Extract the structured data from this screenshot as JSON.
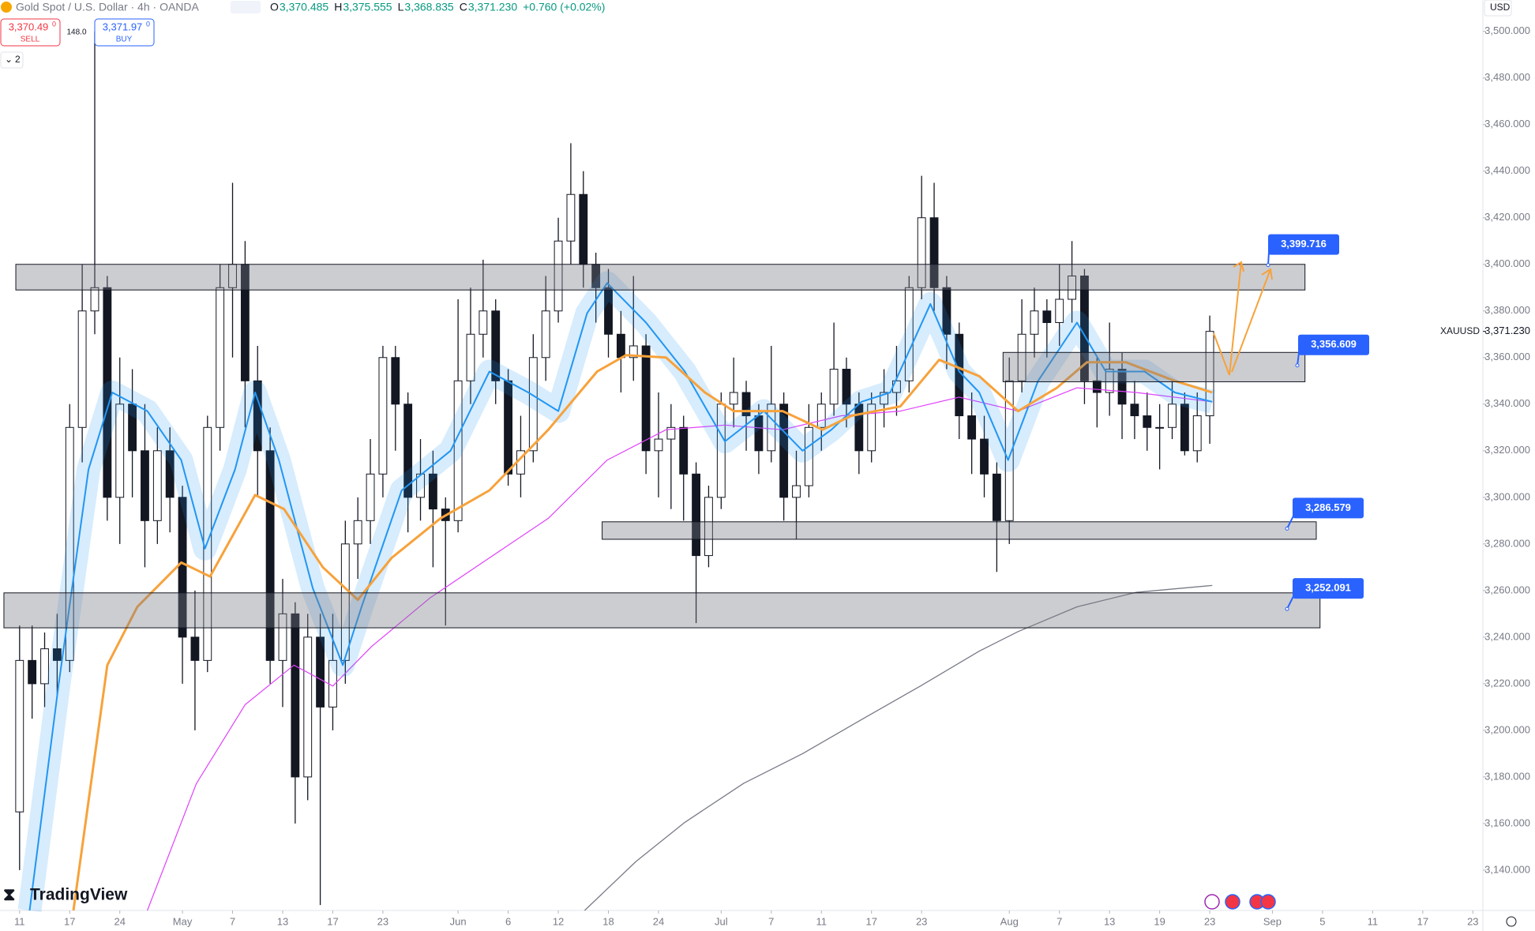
{
  "header": {
    "symbol": "Gold Spot / U.S. Dollar · 4h · OANDA",
    "ohlc": [
      {
        "key": "O",
        "value": "3,370.485"
      },
      {
        "key": "H",
        "value": "3,375.555"
      },
      {
        "key": "L",
        "value": "3,368.835"
      },
      {
        "key": "C",
        "value": "3,371.230"
      }
    ],
    "change": "+0.760 (+0.02%)",
    "sell": {
      "price": "3,370.49",
      "sup": "0",
      "label": "SELL"
    },
    "spread": "148.0",
    "buy": {
      "price": "3,371.97",
      "sup": "0",
      "label": "BUY"
    },
    "indicators": "2",
    "currency": "USD",
    "logo": "TradingView"
  },
  "chart_data": {
    "type": "candlestick",
    "xlim": [
      -1.5625,
      116.8
    ],
    "ylim": [
      3122.69,
      3513.45
    ],
    "xticks": [
      {
        "value": 0,
        "label": "11"
      },
      {
        "value": 4,
        "label": "17"
      },
      {
        "value": 8,
        "label": "24"
      },
      {
        "value": 13,
        "label": "May"
      },
      {
        "value": 17,
        "label": "7"
      },
      {
        "value": 21,
        "label": "13"
      },
      {
        "value": 25,
        "label": "17"
      },
      {
        "value": 29,
        "label": "23"
      },
      {
        "value": 35,
        "label": "Jun"
      },
      {
        "value": 39,
        "label": "6"
      },
      {
        "value": 43,
        "label": "12"
      },
      {
        "value": 47,
        "label": "18"
      },
      {
        "value": 51,
        "label": "24"
      },
      {
        "value": 56,
        "label": "Jul"
      },
      {
        "value": 60,
        "label": "7"
      },
      {
        "value": 64,
        "label": "11"
      },
      {
        "value": 68,
        "label": "17"
      },
      {
        "value": 72,
        "label": "23"
      },
      {
        "value": 79,
        "label": "Aug"
      },
      {
        "value": 83,
        "label": "7"
      },
      {
        "value": 87,
        "label": "13"
      },
      {
        "value": 91,
        "label": "19"
      },
      {
        "value": 95,
        "label": "23"
      },
      {
        "value": 100,
        "label": "Sep"
      },
      {
        "value": 104,
        "label": "5"
      },
      {
        "value": 108,
        "label": "11"
      },
      {
        "value": 112,
        "label": "17"
      },
      {
        "value": 116,
        "label": "23"
      }
    ],
    "yticks": [
      {
        "value": 3140,
        "label": "3,140.000"
      },
      {
        "value": 3160,
        "label": "3,160.000"
      },
      {
        "value": 3180,
        "label": "3,180.000"
      },
      {
        "value": 3200,
        "label": "3,200.000"
      },
      {
        "value": 3220,
        "label": "3,220.000"
      },
      {
        "value": 3240,
        "label": "3,240.000"
      },
      {
        "value": 3260,
        "label": "3,260.000"
      },
      {
        "value": 3280,
        "label": "3,280.000"
      },
      {
        "value": 3300,
        "label": "3,300.000"
      },
      {
        "value": 3320,
        "label": "3,320.000"
      },
      {
        "value": 3340,
        "label": "3,340.000"
      },
      {
        "value": 3360,
        "label": "3,360.000"
      },
      {
        "value": 3380,
        "label": "3,380.000"
      },
      {
        "value": 3400,
        "label": "3,400.000"
      },
      {
        "value": 3420,
        "label": "3,420.000"
      },
      {
        "value": 3440,
        "label": "3,440.000"
      },
      {
        "value": 3460,
        "label": "3,460.000"
      },
      {
        "value": 3480,
        "label": "3,480.000"
      },
      {
        "value": 3500,
        "label": "3,500.000"
      }
    ],
    "candles": {
      "x": [
        0,
        1,
        2,
        3,
        4,
        5,
        6,
        7,
        8,
        9,
        10,
        11,
        12,
        13,
        14,
        15,
        16,
        17,
        18,
        19,
        20,
        21,
        22,
        23,
        24,
        25,
        26,
        27,
        28,
        29,
        30,
        31,
        32,
        33,
        34,
        35,
        36,
        37,
        38,
        39,
        40,
        41,
        42,
        43,
        44,
        45,
        46,
        47,
        48,
        49,
        50,
        51,
        52,
        53,
        54,
        55,
        56,
        57,
        58,
        59,
        60,
        61,
        62,
        63,
        64,
        65,
        66,
        67,
        68,
        69,
        70,
        71,
        72,
        73,
        74,
        75,
        76,
        77,
        78,
        79,
        80,
        81,
        82,
        83,
        84,
        85,
        86,
        87,
        88,
        89,
        90,
        91,
        92,
        93,
        94,
        95
      ],
      "open": [
        3165,
        3230,
        3220,
        3235,
        3230,
        3330,
        3380,
        3390,
        3300,
        3340,
        3320,
        3290,
        3320,
        3300,
        3240,
        3230,
        3330,
        3390,
        3400,
        3350,
        3320,
        3230,
        3250,
        3180,
        3240,
        3210,
        3230,
        3280,
        3290,
        3310,
        3360,
        3340,
        3300,
        3310,
        3295,
        3290,
        3350,
        3370,
        3380,
        3350,
        3310,
        3320,
        3360,
        3380,
        3410,
        3430,
        3400,
        3390,
        3370,
        3360,
        3365,
        3320,
        3325,
        3330,
        3310,
        3275,
        3300,
        3340,
        3345,
        3335,
        3320,
        3340,
        3300,
        3305,
        3330,
        3340,
        3355,
        3340,
        3320,
        3340,
        3345,
        3350,
        3390,
        3420,
        3390,
        3370,
        3335,
        3325,
        3310,
        3290,
        3350,
        3370,
        3380,
        3375,
        3385,
        3395,
        3350,
        3345,
        3355,
        3340,
        3335,
        3330,
        3330,
        3340,
        3320,
        3335
      ],
      "high": [
        3245,
        3245,
        3242,
        3250,
        3340,
        3400,
        3500,
        3395,
        3360,
        3355,
        3340,
        3330,
        3330,
        3305,
        3260,
        3335,
        3400,
        3435,
        3410,
        3365,
        3330,
        3265,
        3255,
        3250,
        3250,
        3250,
        3290,
        3300,
        3325,
        3365,
        3365,
        3345,
        3325,
        3320,
        3300,
        3385,
        3390,
        3402,
        3385,
        3355,
        3335,
        3370,
        3395,
        3420,
        3452,
        3440,
        3405,
        3398,
        3380,
        3395,
        3370,
        3345,
        3340,
        3335,
        3315,
        3305,
        3345,
        3360,
        3350,
        3340,
        3365,
        3345,
        3320,
        3340,
        3345,
        3375,
        3360,
        3345,
        3345,
        3355,
        3365,
        3395,
        3438,
        3435,
        3395,
        3375,
        3345,
        3335,
        3315,
        3360,
        3385,
        3390,
        3385,
        3400,
        3410,
        3398,
        3360,
        3375,
        3362,
        3350,
        3345,
        3340,
        3350,
        3345,
        3345,
        3378
      ],
      "low": [
        3140,
        3205,
        3210,
        3215,
        3225,
        3315,
        3370,
        3290,
        3280,
        3300,
        3270,
        3280,
        3285,
        3220,
        3200,
        3225,
        3320,
        3360,
        3330,
        3300,
        3220,
        3210,
        3160,
        3170,
        3125,
        3200,
        3220,
        3265,
        3280,
        3300,
        3320,
        3285,
        3290,
        3270,
        3245,
        3285,
        3340,
        3360,
        3340,
        3305,
        3300,
        3315,
        3350,
        3375,
        3400,
        3390,
        3375,
        3360,
        3345,
        3350,
        3310,
        3300,
        3295,
        3290,
        3246,
        3270,
        3295,
        3330,
        3320,
        3310,
        3315,
        3290,
        3282,
        3300,
        3320,
        3335,
        3330,
        3310,
        3315,
        3330,
        3335,
        3345,
        3385,
        3380,
        3355,
        3325,
        3310,
        3300,
        3268,
        3280,
        3345,
        3360,
        3360,
        3365,
        3375,
        3340,
        3330,
        3335,
        3325,
        3325,
        3320,
        3312,
        3325,
        3318,
        3315,
        3323
      ],
      "close": [
        3230,
        3220,
        3235,
        3230,
        3330,
        3380,
        3390,
        3300,
        3340,
        3320,
        3290,
        3320,
        3300,
        3240,
        3230,
        3330,
        3390,
        3400,
        3350,
        3320,
        3230,
        3250,
        3180,
        3240,
        3210,
        3230,
        3280,
        3290,
        3310,
        3360,
        3340,
        3300,
        3310,
        3295,
        3290,
        3350,
        3370,
        3380,
        3350,
        3310,
        3320,
        3360,
        3380,
        3410,
        3430,
        3400,
        3390,
        3370,
        3360,
        3365,
        3320,
        3325,
        3330,
        3310,
        3275,
        3300,
        3340,
        3345,
        3335,
        3320,
        3340,
        3300,
        3305,
        3330,
        3340,
        3355,
        3340,
        3320,
        3340,
        3345,
        3350,
        3390,
        3420,
        3390,
        3370,
        3335,
        3325,
        3310,
        3290,
        3350,
        3370,
        3380,
        3375,
        3385,
        3395,
        3350,
        3345,
        3355,
        3340,
        3335,
        3330,
        3330,
        3340,
        3320,
        3335,
        3371.23
      ],
      "up_color": "#ffffff",
      "down_color": "#131722"
    },
    "series": [
      {
        "color": "#787b86",
        "width": 1.3,
        "x": [
          45.1,
          49.2,
          53.1,
          57.8,
          62.5,
          67.2,
          71.9,
          76.6,
          79.7,
          84.4,
          89.1,
          95.2
        ],
        "values": [
          3122.7,
          3143.7,
          3160.5,
          3177.3,
          3190,
          3204.6,
          3219,
          3234,
          3242.4,
          3253,
          3259.2,
          3262.2
        ]
      },
      {
        "color": "#e040fb",
        "width": 1.2,
        "x": [
          10.2,
          14.1,
          18,
          21.9,
          25,
          28.1,
          32.8,
          37.5,
          42.2,
          46.9,
          51.6,
          56.3,
          60.9,
          65.6,
          70.3,
          75,
          79.7,
          84.4,
          89.1,
          95.2
        ],
        "values": [
          3122.7,
          3177,
          3211,
          3228,
          3219,
          3236,
          3257,
          3274,
          3291,
          3316,
          3329,
          3331,
          3329,
          3335,
          3337,
          3343,
          3337,
          3347,
          3345,
          3341
        ]
      },
      {
        "color": "#2196f3",
        "width": 2,
        "ribbon": true,
        "x": [
          0.8,
          3.1,
          5.5,
          7.4,
          10.2,
          12.9,
          14.8,
          17.2,
          18.8,
          20.7,
          23.4,
          25.8,
          27.3,
          30.5,
          34.4,
          37.5,
          40.6,
          43,
          45.3,
          46.9,
          50,
          53.1,
          56.3,
          59.4,
          62.5,
          64.8,
          67.2,
          69.5,
          72.7,
          75,
          76.6,
          78.9,
          81.3,
          84.4,
          86.7,
          89.8,
          92.2,
          95.2
        ],
        "values": [
          3122.7,
          3219,
          3312,
          3345,
          3337,
          3316,
          3278,
          3312,
          3345,
          3316,
          3261,
          3228,
          3253,
          3303,
          3320,
          3354,
          3345,
          3337,
          3379,
          3392,
          3375,
          3354,
          3324,
          3337,
          3320,
          3329,
          3341,
          3345,
          3383,
          3354,
          3345,
          3316,
          3350,
          3375,
          3354,
          3354,
          3345,
          3341
        ]
      },
      {
        "color": "#f7a23b",
        "width": 3,
        "x": [
          4.3,
          7,
          9.4,
          12.9,
          15.2,
          18.8,
          21.1,
          24.2,
          27,
          29.7,
          33.6,
          37.5,
          42.2,
          46.1,
          48.4,
          51.6,
          54.7,
          57,
          60.9,
          64.1,
          66.4,
          70.3,
          73.4,
          76.6,
          79.7,
          82.8,
          85.2,
          88.3,
          92.2,
          95.2
        ],
        "values": [
          3122.7,
          3228,
          3253,
          3272,
          3266,
          3301,
          3295,
          3270,
          3256,
          3274,
          3291,
          3303,
          3329,
          3354,
          3361,
          3360,
          3345,
          3337,
          3337,
          3329,
          3335,
          3339,
          3359,
          3352,
          3337,
          3347,
          3358,
          3358,
          3350,
          3345
        ]
      }
    ],
    "zones": [
      {
        "start": -0.3,
        "end": 102.6,
        "low": 3389,
        "high": 3400
      },
      {
        "start": 78.5,
        "end": 102.6,
        "low": 3349.6,
        "high": 3362.2
      },
      {
        "start": 46.5,
        "end": 103.5,
        "low": 3282,
        "high": 3289.5
      },
      {
        "start": -1.25,
        "end": 103.8,
        "low": 3244,
        "high": 3259
      }
    ],
    "price_labels": [
      {
        "value": 3399.716,
        "label": "3,399.716"
      },
      {
        "value": 3356.609,
        "label": "3,356.609"
      },
      {
        "value": 3286.579,
        "label": "3,286.579"
      },
      {
        "value": 3252.091,
        "label": "3,252.091"
      }
    ],
    "last_price": {
      "symbol": "XAUUSD",
      "value": 3371.23,
      "label": "3,371.230"
    }
  }
}
